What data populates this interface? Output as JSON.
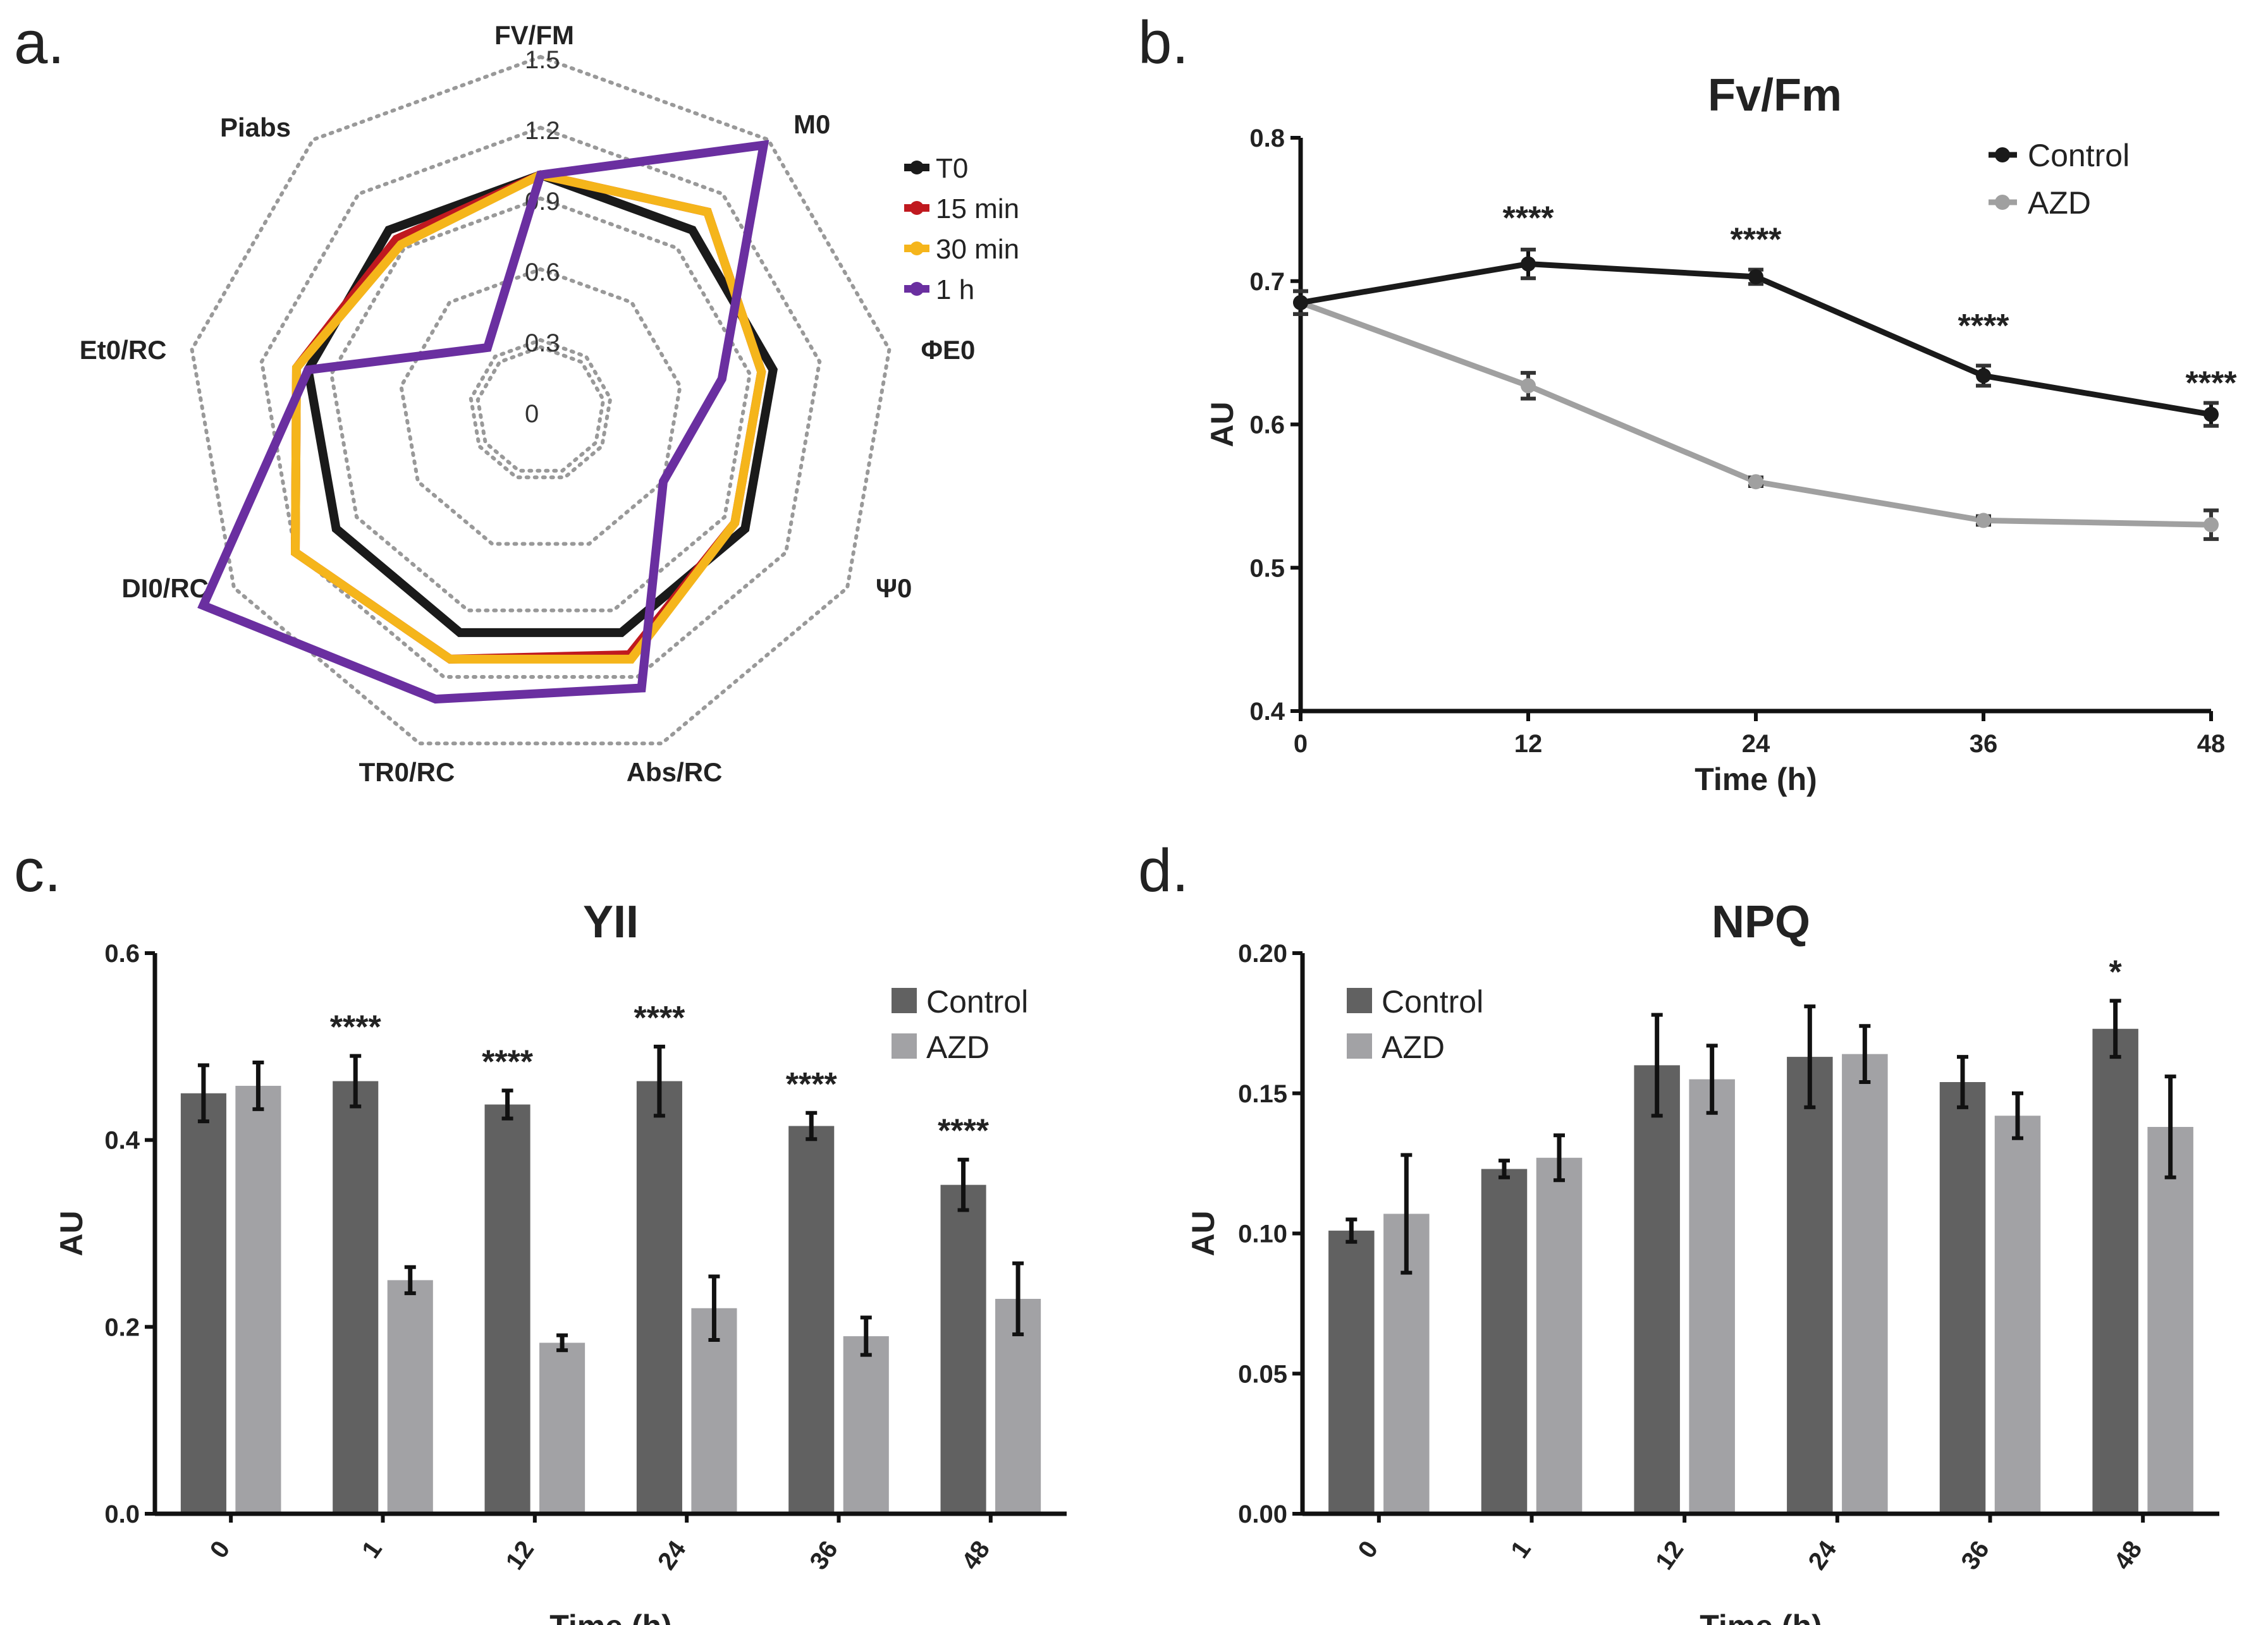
{
  "panels": {
    "a": "a.",
    "b": "b.",
    "c": "c.",
    "d": "d."
  },
  "chart_data": [
    {
      "panel": "a",
      "type": "radar",
      "title": "",
      "axes": [
        "FV/FM",
        "M0",
        "ΦE0",
        "Ψ0",
        "Abs/RC",
        "TR0/RC",
        "DI0/RC",
        "Et0/RC",
        "Piabs"
      ],
      "ring_ticks": [
        "0",
        "0.3",
        "0.6",
        "0.9",
        "1.2",
        "1.5"
      ],
      "rmax": 1.5,
      "grid": "dotted",
      "legend": [
        "T0",
        "15 min",
        "30 min",
        "1 h"
      ],
      "series": [
        {
          "name": "T0",
          "color": "#1a1a1a",
          "values": [
            1.0,
            1.0,
            1.0,
            1.0,
            1.0,
            1.0,
            1.0,
            1.0,
            1.0
          ]
        },
        {
          "name": "15 min",
          "color": "#c0191f",
          "values": [
            1.0,
            1.1,
            0.95,
            0.95,
            1.1,
            1.12,
            1.2,
            1.05,
            0.95
          ]
        },
        {
          "name": "30 min",
          "color": "#f5b51b",
          "values": [
            1.0,
            1.1,
            0.95,
            0.95,
            1.12,
            1.12,
            1.2,
            1.05,
            0.92
          ]
        },
        {
          "name": "1 h",
          "color": "#6a2fa0",
          "values": [
            1.0,
            1.47,
            0.78,
            0.6,
            1.25,
            1.3,
            1.65,
            1.0,
            0.35
          ]
        }
      ]
    },
    {
      "panel": "b",
      "type": "line",
      "title": "Fv/Fm",
      "xlabel": "Time (h)",
      "ylabel": "AU",
      "x": [
        0,
        12,
        24,
        36,
        48
      ],
      "xticks": [
        "0",
        "12",
        "24",
        "36",
        "48"
      ],
      "ylim": [
        0.4,
        0.8
      ],
      "yticks": [
        "0.4",
        "0.5",
        "0.6",
        "0.7",
        "0.8"
      ],
      "legend": "top-right",
      "series": [
        {
          "name": "Control",
          "color": "#1a1a1a",
          "values": [
            0.685,
            0.712,
            0.703,
            0.634,
            0.607
          ],
          "errors": [
            0.008,
            0.01,
            0.005,
            0.007,
            0.008
          ]
        },
        {
          "name": "AZD",
          "color": "#a0a0a0",
          "values": [
            0.685,
            0.627,
            0.56,
            0.533,
            0.53
          ],
          "errors": [
            0.008,
            0.009,
            0.003,
            0.003,
            0.01
          ]
        }
      ],
      "annotations": [
        {
          "x": 12,
          "y": 0.745,
          "text": "****"
        },
        {
          "x": 24,
          "y": 0.73,
          "text": "****"
        },
        {
          "x": 36,
          "y": 0.67,
          "text": "****"
        },
        {
          "x": 48,
          "y": 0.63,
          "text": "****"
        }
      ]
    },
    {
      "panel": "c",
      "type": "bar",
      "title": "YII",
      "xlabel": "Time (h)",
      "ylabel": "AU",
      "categories": [
        "0",
        "1",
        "12",
        "24",
        "36",
        "48"
      ],
      "ylim": [
        0.0,
        0.6
      ],
      "yticks": [
        "0.0",
        "0.2",
        "0.4",
        "0.6"
      ],
      "legend": "top-right",
      "series": [
        {
          "name": "Control",
          "color": "#616161",
          "values": [
            0.45,
            0.463,
            0.438,
            0.463,
            0.415,
            0.352
          ],
          "errors": [
            0.03,
            0.027,
            0.015,
            0.037,
            0.014,
            0.027
          ]
        },
        {
          "name": "AZD",
          "color": "#a2a2a5",
          "values": [
            0.458,
            0.25,
            0.183,
            0.22,
            0.19,
            0.23
          ],
          "errors": [
            0.025,
            0.014,
            0.008,
            0.034,
            0.02,
            0.038
          ]
        }
      ],
      "annotations": [
        {
          "category": "1",
          "text": "****"
        },
        {
          "category": "12",
          "text": "****"
        },
        {
          "category": "24",
          "text": "****"
        },
        {
          "category": "36",
          "text": "****"
        },
        {
          "category": "48",
          "text": "****"
        }
      ]
    },
    {
      "panel": "d",
      "type": "bar",
      "title": "NPQ",
      "xlabel": "Time (h)",
      "ylabel": "AU",
      "categories": [
        "0",
        "1",
        "12",
        "24",
        "36",
        "48"
      ],
      "ylim": [
        0.0,
        0.2
      ],
      "yticks": [
        "0.00",
        "0.05",
        "0.10",
        "0.15",
        "0.20"
      ],
      "legend": "top-left",
      "series": [
        {
          "name": "Control",
          "color": "#616161",
          "values": [
            0.101,
            0.123,
            0.16,
            0.163,
            0.154,
            0.173
          ],
          "errors": [
            0.004,
            0.003,
            0.018,
            0.018,
            0.009,
            0.01
          ]
        },
        {
          "name": "AZD",
          "color": "#a2a2a5",
          "values": [
            0.107,
            0.127,
            0.155,
            0.164,
            0.142,
            0.138
          ],
          "errors": [
            0.021,
            0.008,
            0.012,
            0.01,
            0.008,
            0.018
          ]
        }
      ],
      "annotations": [
        {
          "category": "48",
          "text": "*"
        }
      ]
    }
  ]
}
